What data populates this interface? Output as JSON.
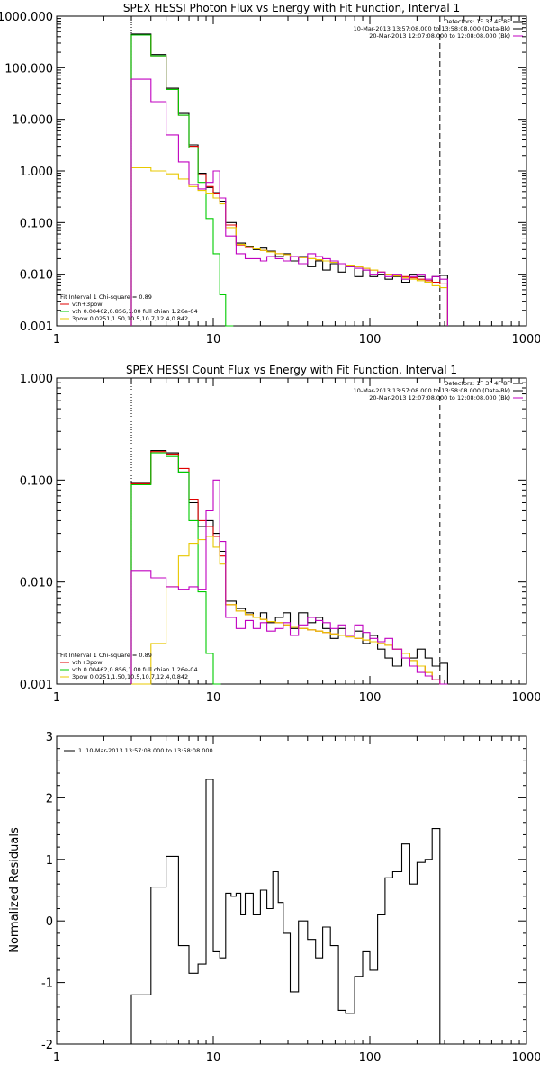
{
  "chart_data": [
    {
      "type": "line",
      "title": "SPEX HESSI Photon Flux vs Energy with Fit Function, Interval 1",
      "xscale": "log",
      "yscale": "log",
      "xlim": [
        1,
        1000
      ],
      "ylim": [
        0.001,
        1000
      ],
      "xticks": [
        {
          "v": 1,
          "label": "1"
        },
        {
          "v": 10,
          "label": "10"
        },
        {
          "v": 100,
          "label": "100"
        },
        {
          "v": 1000,
          "label": "1000"
        }
      ],
      "yticks": [
        {
          "v": 0.001,
          "label": "0.001"
        },
        {
          "v": 0.01,
          "label": "0.010"
        },
        {
          "v": 0.1,
          "label": "0.100"
        },
        {
          "v": 1,
          "label": "1.000"
        },
        {
          "v": 10,
          "label": "10.000"
        },
        {
          "v": 100,
          "label": "100.000"
        },
        {
          "v": 1000,
          "label": "1000.000"
        }
      ],
      "vlines": [
        {
          "x": 3,
          "style": "dotted"
        },
        {
          "x": 280,
          "style": "dashed"
        }
      ],
      "info": [
        "Detectors: 1F 3F 4F 8F",
        "10-Mar-2013 13:57:08.000 to 13:58:08.000 (Data-Bk)",
        "20-Mar-2013 12:07:08.000 to 12:08:08.000 (Bk)"
      ],
      "info_colors": [
        "#000000",
        "#000000",
        "#c000c0"
      ],
      "fit_legend": [
        "Fit Interval 1    Chi-square = 0.89",
        "vth+3pow",
        "vth 0.00462,0.856,1.00   full chian 1.26e-04",
        "3pow 0.0251,1.50,10.5,10.7,12.4,0.842"
      ],
      "fit_legend_colors": [
        "#000000",
        "#e00000",
        "#00cc00",
        "#e8c800"
      ],
      "series": [
        {
          "color": "#000000",
          "x": [
            3,
            4,
            5,
            6,
            7,
            8,
            9,
            10,
            11,
            12,
            14,
            16,
            18,
            20,
            22,
            25,
            28,
            31,
            35,
            40,
            45,
            50,
            56,
            63,
            70,
            80,
            90,
            100,
            112,
            125,
            140,
            160,
            180,
            200,
            225,
            250,
            280
          ],
          "y": [
            450,
            180,
            40,
            13,
            3.2,
            0.9,
            0.48,
            0.38,
            0.26,
            0.1,
            0.04,
            0.035,
            0.03,
            0.032,
            0.028,
            0.022,
            0.025,
            0.018,
            0.022,
            0.014,
            0.018,
            0.012,
            0.016,
            0.011,
            0.014,
            0.009,
            0.012,
            0.009,
            0.01,
            0.008,
            0.009,
            0.007,
            0.01,
            0.009,
            0.007,
            0.009,
            0.0095
          ]
        },
        {
          "color": "#e00000",
          "x": [
            3,
            4,
            5,
            6,
            7,
            8,
            9,
            10,
            11,
            12,
            14,
            16,
            18,
            20,
            22,
            25,
            28,
            31,
            35,
            40,
            45,
            50,
            56,
            63,
            70,
            80,
            90,
            100,
            112,
            125,
            140,
            160,
            180,
            200,
            225,
            250,
            280
          ],
          "y": [
            430,
            170,
            38,
            12,
            3.0,
            0.85,
            0.5,
            0.36,
            0.25,
            0.09,
            0.037,
            0.033,
            0.031,
            0.029,
            0.027,
            0.025,
            0.024,
            0.022,
            0.021,
            0.02,
            0.019,
            0.018,
            0.017,
            0.016,
            0.015,
            0.014,
            0.013,
            0.012,
            0.011,
            0.01,
            0.0095,
            0.009,
            0.0085,
            0.008,
            0.0075,
            0.007,
            0.0065
          ]
        },
        {
          "color": "#00cc00",
          "x": [
            3,
            4,
            5,
            6,
            7,
            8,
            9,
            10,
            11,
            12
          ],
          "y": [
            430,
            170,
            38,
            12,
            2.8,
            0.6,
            0.12,
            0.025,
            0.004,
            0.001
          ]
        },
        {
          "color": "#e8c800",
          "x": [
            3,
            4,
            5,
            6,
            7,
            8,
            9,
            10,
            11,
            12,
            14,
            16,
            18,
            20,
            22,
            25,
            28,
            31,
            35,
            40,
            45,
            50,
            56,
            63,
            70,
            80,
            90,
            100,
            112,
            125,
            140,
            160,
            180,
            200,
            225,
            250,
            280
          ],
          "y": [
            1.15,
            1.0,
            0.88,
            0.7,
            0.5,
            0.42,
            0.36,
            0.3,
            0.23,
            0.08,
            0.038,
            0.034,
            0.031,
            0.029,
            0.027,
            0.025,
            0.024,
            0.022,
            0.021,
            0.02,
            0.019,
            0.018,
            0.017,
            0.016,
            0.015,
            0.014,
            0.013,
            0.012,
            0.011,
            0.01,
            0.0092,
            0.0085,
            0.008,
            0.0075,
            0.007,
            0.006,
            0.0055
          ]
        },
        {
          "color": "#c000c0",
          "x": [
            3,
            4,
            5,
            6,
            7,
            8,
            9,
            10,
            11,
            12,
            14,
            16,
            18,
            20,
            22,
            25,
            28,
            31,
            35,
            40,
            45,
            50,
            56,
            63,
            70,
            80,
            90,
            100,
            112,
            125,
            140,
            160,
            180,
            200,
            225,
            250,
            280
          ],
          "y": [
            60,
            22,
            5.0,
            1.5,
            0.55,
            0.45,
            0.6,
            1.0,
            0.3,
            0.055,
            0.025,
            0.02,
            0.02,
            0.018,
            0.022,
            0.02,
            0.018,
            0.022,
            0.016,
            0.025,
            0.022,
            0.02,
            0.018,
            0.016,
            0.014,
            0.013,
            0.012,
            0.01,
            0.011,
            0.009,
            0.01,
            0.008,
            0.009,
            0.01,
            0.008,
            0.009,
            0.008
          ]
        }
      ]
    },
    {
      "type": "line",
      "title": "SPEX HESSI Count Flux vs Energy with Fit Function, Interval 1",
      "xscale": "log",
      "yscale": "log",
      "xlim": [
        1,
        1000
      ],
      "ylim": [
        0.001,
        1
      ],
      "xticks": [
        {
          "v": 1,
          "label": "1"
        },
        {
          "v": 10,
          "label": "10"
        },
        {
          "v": 100,
          "label": "100"
        },
        {
          "v": 1000,
          "label": "1000"
        }
      ],
      "yticks": [
        {
          "v": 0.001,
          "label": "0.001"
        },
        {
          "v": 0.01,
          "label": "0.010"
        },
        {
          "v": 0.1,
          "label": "0.100"
        },
        {
          "v": 1,
          "label": "1.000"
        }
      ],
      "vlines": [
        {
          "x": 3,
          "style": "dotted"
        },
        {
          "x": 280,
          "style": "dashed"
        }
      ],
      "info": [
        "Detectors: 1F 3F 4F 8F",
        "10-Mar-2013 13:57:08.000 to 13:58:08.000 (Data-Bk)",
        "20-Mar-2013 12:07:08.000 to 12:08:08.000 (Bk)"
      ],
      "info_colors": [
        "#000000",
        "#000000",
        "#c000c0"
      ],
      "fit_legend": [
        "Fit Interval 1    Chi-square = 0.89",
        "vth+3pow",
        "vth 0.00462,0.856,1.00   full chian 1.26e-04",
        "3pow 0.0251,1.50,10.5,10.7,12.4,0.842"
      ],
      "fit_legend_colors": [
        "#000000",
        "#e00000",
        "#00cc00",
        "#e8c800"
      ],
      "series": [
        {
          "color": "#000000",
          "x": [
            3,
            4,
            5,
            6,
            7,
            8,
            9,
            10,
            11,
            12,
            14,
            16,
            18,
            20,
            22,
            25,
            28,
            31,
            35,
            40,
            45,
            50,
            56,
            63,
            70,
            80,
            90,
            100,
            112,
            125,
            140,
            160,
            180,
            200,
            225,
            250,
            280
          ],
          "y": [
            0.095,
            0.195,
            0.185,
            0.12,
            0.06,
            0.035,
            0.04,
            0.03,
            0.02,
            0.0065,
            0.0055,
            0.005,
            0.0045,
            0.005,
            0.004,
            0.0045,
            0.005,
            0.0035,
            0.005,
            0.004,
            0.0045,
            0.0035,
            0.0028,
            0.0035,
            0.003,
            0.0033,
            0.0025,
            0.003,
            0.0022,
            0.0018,
            0.0015,
            0.002,
            0.0018,
            0.0022,
            0.0018,
            0.0015,
            0.0016
          ]
        },
        {
          "color": "#e00000",
          "x": [
            3,
            4,
            5,
            6,
            7,
            8,
            9,
            10,
            11,
            12,
            14,
            16,
            18,
            20,
            22,
            25,
            28,
            31,
            35,
            40,
            45,
            50,
            56,
            63,
            70,
            80,
            90,
            100,
            112,
            125,
            140,
            160,
            180,
            200,
            225,
            250,
            280
          ],
          "y": [
            0.092,
            0.19,
            0.18,
            0.13,
            0.065,
            0.04,
            0.035,
            0.028,
            0.018,
            0.006,
            0.0052,
            0.0048,
            0.0045,
            0.0043,
            0.0041,
            0.004,
            0.0038,
            0.0036,
            0.0035,
            0.0034,
            0.0033,
            0.0032,
            0.0031,
            0.003,
            0.0029,
            0.0028,
            0.0027,
            0.0026,
            0.0025,
            0.0024,
            0.0022,
            0.002,
            0.0017,
            0.0015,
            0.0013,
            0.0011,
            0.001
          ]
        },
        {
          "color": "#00cc00",
          "x": [
            3,
            4,
            5,
            6,
            7,
            8,
            9,
            10
          ],
          "y": [
            0.09,
            0.185,
            0.17,
            0.12,
            0.04,
            0.008,
            0.002,
            0.001
          ]
        },
        {
          "color": "#e8c800",
          "x": [
            3,
            4,
            5,
            6,
            7,
            8,
            9,
            10,
            11,
            12,
            14,
            16,
            18,
            20,
            22,
            25,
            28,
            31,
            35,
            40,
            45,
            50,
            56,
            63,
            70,
            80,
            90,
            100,
            112,
            125,
            140,
            160,
            180,
            200,
            225,
            250,
            280
          ],
          "y": [
            0.001,
            0.0025,
            0.009,
            0.018,
            0.024,
            0.026,
            0.028,
            0.022,
            0.015,
            0.006,
            0.0052,
            0.0048,
            0.0045,
            0.0043,
            0.0041,
            0.004,
            0.0038,
            0.0036,
            0.0035,
            0.0034,
            0.0033,
            0.0032,
            0.0031,
            0.003,
            0.0029,
            0.0028,
            0.0027,
            0.0026,
            0.0025,
            0.0024,
            0.0022,
            0.002,
            0.0017,
            0.0015,
            0.0013,
            0.0011,
            0.001
          ]
        },
        {
          "color": "#c000c0",
          "x": [
            3,
            4,
            5,
            6,
            7,
            8,
            9,
            10,
            11,
            12,
            14,
            16,
            18,
            20,
            22,
            25,
            28,
            31,
            35,
            40,
            45,
            50,
            56,
            63,
            70,
            80,
            90,
            100,
            112,
            125,
            140,
            160,
            180,
            200,
            225,
            250,
            280
          ],
          "y": [
            0.013,
            0.011,
            0.009,
            0.0085,
            0.009,
            0.0085,
            0.05,
            0.1,
            0.025,
            0.0045,
            0.0035,
            0.0042,
            0.0035,
            0.004,
            0.0033,
            0.0035,
            0.004,
            0.003,
            0.0038,
            0.0045,
            0.0042,
            0.004,
            0.0035,
            0.0038,
            0.003,
            0.0038,
            0.0032,
            0.0028,
            0.0026,
            0.0028,
            0.0022,
            0.0018,
            0.0015,
            0.0013,
            0.0012,
            0.0011,
            0.001
          ]
        }
      ]
    },
    {
      "type": "line",
      "ylabel": "Normalized Residuals",
      "xscale": "log",
      "yscale": "linear",
      "xlim": [
        1,
        1000
      ],
      "ylim": [
        -2,
        3
      ],
      "xticks": [
        {
          "v": 1,
          "label": "1"
        },
        {
          "v": 10,
          "label": "10"
        },
        {
          "v": 100,
          "label": "100"
        },
        {
          "v": 1000,
          "label": "1000"
        }
      ],
      "yticks": [
        {
          "v": -2,
          "label": "-2"
        },
        {
          "v": -1,
          "label": "-1"
        },
        {
          "v": 0,
          "label": "0"
        },
        {
          "v": 1,
          "label": "1"
        },
        {
          "v": 2,
          "label": "2"
        },
        {
          "v": 3,
          "label": "3"
        }
      ],
      "legend": "1. 10-Mar-2013 13:57:08.000 to 13:58:08.000",
      "series": [
        {
          "color": "#000000",
          "x": [
            3,
            4,
            5,
            6,
            7,
            8,
            9,
            10,
            11,
            12,
            13,
            14,
            15,
            16,
            18,
            20,
            22,
            24,
            26,
            28,
            31,
            35,
            40,
            45,
            50,
            56,
            63,
            70,
            80,
            90,
            100,
            112,
            125,
            140,
            160,
            180,
            200,
            225,
            250,
            280
          ],
          "y": [
            -1.2,
            0.55,
            1.05,
            -0.4,
            -0.85,
            -0.7,
            2.3,
            -0.5,
            -0.6,
            0.45,
            0.4,
            0.45,
            0.1,
            0.45,
            0.1,
            0.5,
            0.2,
            0.8,
            0.3,
            -0.2,
            -1.15,
            0.0,
            -0.3,
            -0.6,
            -0.1,
            -0.4,
            -1.45,
            -1.5,
            -0.9,
            -0.5,
            -0.8,
            0.1,
            0.7,
            0.8,
            1.25,
            0.6,
            0.95,
            1.0,
            1.5,
            -2.0
          ]
        }
      ]
    }
  ]
}
